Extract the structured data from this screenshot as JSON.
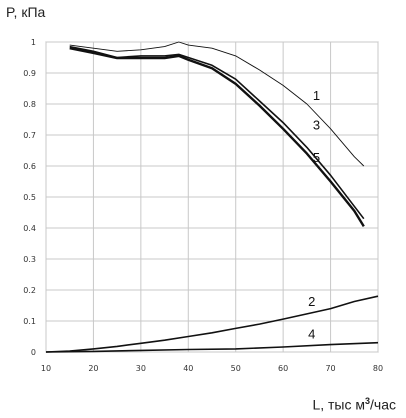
{
  "chart_data": {
    "type": "line",
    "title": "",
    "ylabel": "P, кПа",
    "xlabel_main": "L, тыс м",
    "xlabel_sup": "3",
    "xlabel_tail": "/час",
    "xlim": [
      10,
      80
    ],
    "ylim": [
      0,
      1
    ],
    "xticks": [
      10,
      20,
      30,
      40,
      50,
      60,
      70,
      80
    ],
    "yticks": [
      0,
      0.1,
      0.2,
      0.3,
      0.4,
      0.5,
      0.6,
      0.7,
      0.8,
      0.9,
      1
    ],
    "grid": true,
    "legend": "none",
    "series": [
      {
        "name": "1",
        "stroke": "thin",
        "points": [
          [
            15,
            0.99
          ],
          [
            20,
            0.98
          ],
          [
            25,
            0.97
          ],
          [
            30,
            0.975
          ],
          [
            35,
            0.985
          ],
          [
            38,
            1.0
          ],
          [
            40,
            0.99
          ],
          [
            45,
            0.98
          ],
          [
            50,
            0.955
          ],
          [
            55,
            0.91
          ],
          [
            60,
            0.86
          ],
          [
            65,
            0.8
          ],
          [
            70,
            0.72
          ],
          [
            75,
            0.63
          ],
          [
            77,
            0.6
          ]
        ],
        "label_at": [
          65,
          0.8
        ]
      },
      {
        "name": "3",
        "stroke": "medium",
        "points": [
          [
            15,
            0.985
          ],
          [
            20,
            0.97
          ],
          [
            25,
            0.95
          ],
          [
            30,
            0.955
          ],
          [
            35,
            0.955
          ],
          [
            38,
            0.96
          ],
          [
            40,
            0.95
          ],
          [
            45,
            0.925
          ],
          [
            50,
            0.88
          ],
          [
            55,
            0.81
          ],
          [
            60,
            0.74
          ],
          [
            65,
            0.66
          ],
          [
            70,
            0.57
          ],
          [
            75,
            0.47
          ],
          [
            77,
            0.43
          ]
        ],
        "label_at": [
          65,
          0.705
        ]
      },
      {
        "name": "5",
        "stroke": "thick",
        "points": [
          [
            15,
            0.98
          ],
          [
            20,
            0.965
          ],
          [
            25,
            0.948
          ],
          [
            30,
            0.948
          ],
          [
            35,
            0.948
          ],
          [
            38,
            0.955
          ],
          [
            40,
            0.943
          ],
          [
            45,
            0.915
          ],
          [
            50,
            0.865
          ],
          [
            55,
            0.795
          ],
          [
            60,
            0.72
          ],
          [
            65,
            0.64
          ],
          [
            70,
            0.55
          ],
          [
            75,
            0.455
          ],
          [
            77,
            0.405
          ]
        ],
        "label_at": [
          65,
          0.6
        ]
      },
      {
        "name": "2",
        "stroke": "medium",
        "points": [
          [
            10,
            0
          ],
          [
            15,
            0.003
          ],
          [
            20,
            0.01
          ],
          [
            25,
            0.018
          ],
          [
            30,
            0.028
          ],
          [
            35,
            0.038
          ],
          [
            40,
            0.05
          ],
          [
            45,
            0.062
          ],
          [
            50,
            0.076
          ],
          [
            55,
            0.09
          ],
          [
            60,
            0.106
          ],
          [
            65,
            0.123
          ],
          [
            70,
            0.14
          ],
          [
            75,
            0.163
          ],
          [
            80,
            0.18
          ]
        ],
        "label_at": [
          64,
          0.135
        ]
      },
      {
        "name": "4",
        "stroke": "medium",
        "points": [
          [
            10,
            0
          ],
          [
            20,
            0.002
          ],
          [
            30,
            0.005
          ],
          [
            40,
            0.008
          ],
          [
            50,
            0.01
          ],
          [
            60,
            0.016
          ],
          [
            70,
            0.024
          ],
          [
            80,
            0.03
          ]
        ],
        "label_at": [
          64,
          0.03
        ]
      }
    ]
  }
}
